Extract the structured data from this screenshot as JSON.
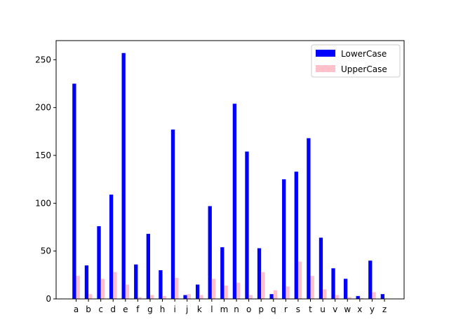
{
  "chart_data": {
    "type": "bar",
    "title": "",
    "xlabel": "",
    "ylabel": "",
    "ylim": [
      0,
      270
    ],
    "yticks": [
      0,
      50,
      100,
      150,
      200,
      250
    ],
    "grid": false,
    "legend_position": "top-right",
    "categories": [
      "a",
      "b",
      "c",
      "d",
      "e",
      "f",
      "g",
      "h",
      "i",
      "j",
      "k",
      "l",
      "m",
      "n",
      "o",
      "p",
      "q",
      "r",
      "s",
      "t",
      "u",
      "v",
      "w",
      "x",
      "y",
      "z"
    ],
    "series": [
      {
        "name": "LowerCase",
        "color": "#0000ff",
        "values": [
          225,
          35,
          76,
          109,
          257,
          36,
          68,
          30,
          177,
          4,
          15,
          97,
          54,
          204,
          154,
          53,
          5,
          125,
          133,
          168,
          64,
          32,
          21,
          3,
          40,
          5
        ]
      },
      {
        "name": "UpperCase",
        "color": "#ffc0cb",
        "values": [
          24,
          5,
          21,
          28,
          15,
          2,
          4,
          3,
          22,
          5,
          4,
          21,
          14,
          17,
          4,
          28,
          9,
          13,
          39,
          24,
          10,
          4,
          2,
          1,
          7,
          0
        ]
      }
    ]
  }
}
